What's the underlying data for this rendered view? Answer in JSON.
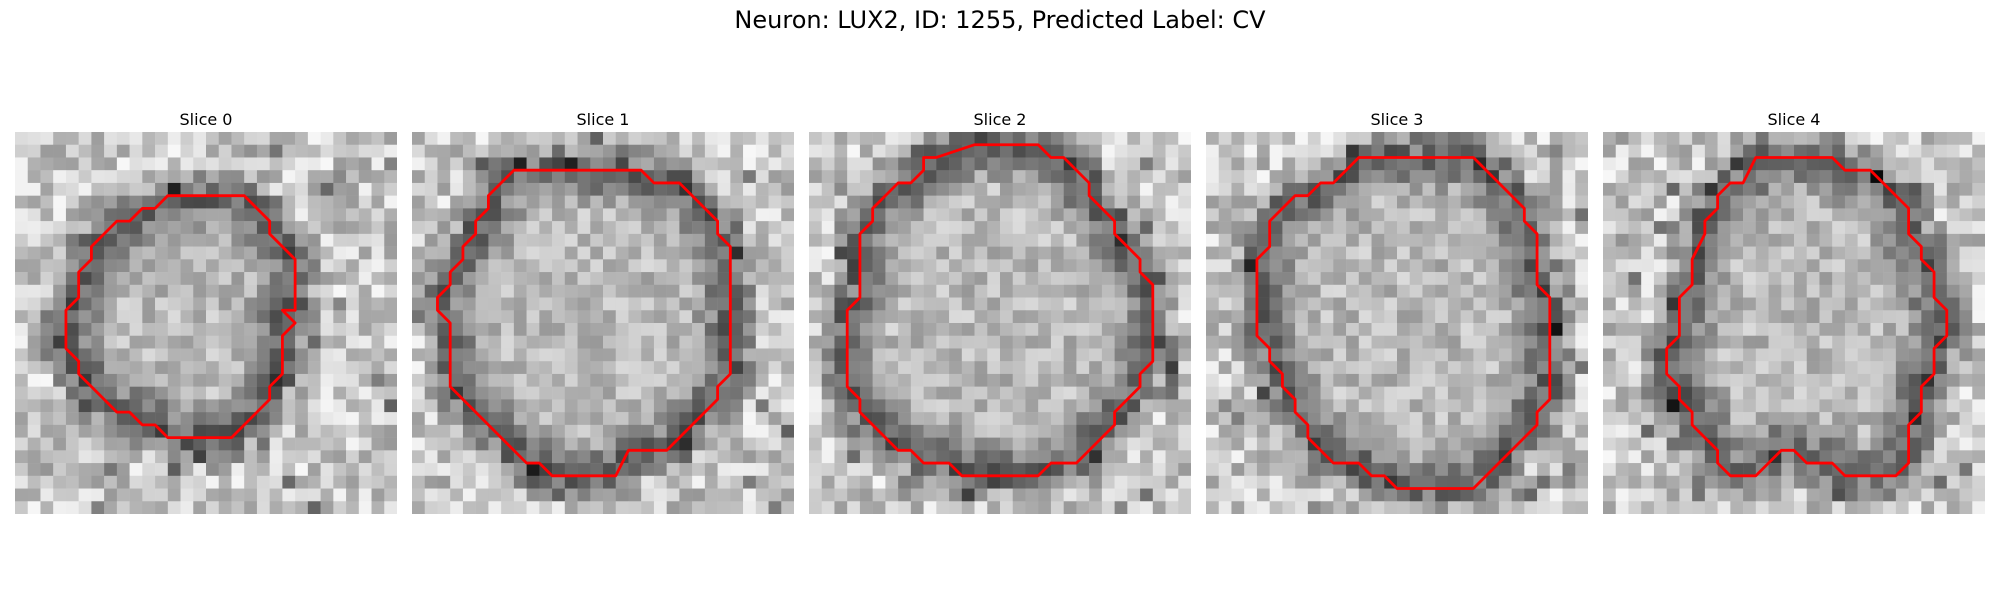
{
  "figure": {
    "title": "Neuron: LUX2, ID: 1255, Predicted Label: CV"
  },
  "colors": {
    "contour": "#ff0000",
    "background": "#ffffff"
  },
  "panels": [
    {
      "title": "Slice 0",
      "contour_grid": [
        [
          13,
          5
        ],
        [
          18,
          5
        ],
        [
          20,
          7
        ],
        [
          20,
          8
        ],
        [
          22,
          10
        ],
        [
          22,
          14
        ],
        [
          21,
          14
        ],
        [
          22,
          15
        ],
        [
          21,
          16
        ],
        [
          21,
          19
        ],
        [
          20,
          20
        ],
        [
          20,
          21
        ],
        [
          17,
          24
        ],
        [
          12,
          24
        ],
        [
          11,
          23
        ],
        [
          10,
          23
        ],
        [
          9,
          22
        ],
        [
          8,
          22
        ],
        [
          7,
          21
        ],
        [
          6,
          20
        ],
        [
          5,
          19
        ],
        [
          5,
          18
        ],
        [
          4,
          17
        ],
        [
          4,
          14
        ],
        [
          5,
          13
        ],
        [
          5,
          11
        ],
        [
          6,
          10
        ],
        [
          6,
          9
        ],
        [
          8,
          7
        ],
        [
          9,
          7
        ],
        [
          10,
          6
        ],
        [
          11,
          6
        ],
        [
          12,
          5
        ]
      ]
    },
    {
      "title": "Slice 1",
      "contour_grid": [
        [
          10,
          3
        ],
        [
          18,
          3
        ],
        [
          19,
          4
        ],
        [
          21,
          4
        ],
        [
          24,
          7
        ],
        [
          24,
          8
        ],
        [
          25,
          9
        ],
        [
          25,
          19
        ],
        [
          24,
          20
        ],
        [
          24,
          21
        ],
        [
          20,
          25
        ],
        [
          17,
          25
        ],
        [
          16,
          27
        ],
        [
          11,
          27
        ],
        [
          10,
          26
        ],
        [
          9,
          26
        ],
        [
          3,
          20
        ],
        [
          3,
          15
        ],
        [
          2,
          14
        ],
        [
          2,
          13
        ],
        [
          3,
          12
        ],
        [
          3,
          11
        ],
        [
          4,
          10
        ],
        [
          4,
          9
        ],
        [
          5,
          8
        ],
        [
          5,
          7
        ],
        [
          6,
          6
        ],
        [
          6,
          5
        ],
        [
          8,
          3
        ]
      ]
    },
    {
      "title": "Slice 2",
      "contour_grid": [
        [
          10,
          2
        ],
        [
          13,
          1
        ],
        [
          18,
          1
        ],
        [
          19,
          2
        ],
        [
          20,
          2
        ],
        [
          22,
          4
        ],
        [
          22,
          5
        ],
        [
          24,
          7
        ],
        [
          24,
          8
        ],
        [
          26,
          10
        ],
        [
          26,
          11
        ],
        [
          27,
          12
        ],
        [
          27,
          18
        ],
        [
          26,
          19
        ],
        [
          26,
          20
        ],
        [
          24,
          22
        ],
        [
          24,
          23
        ],
        [
          21,
          26
        ],
        [
          19,
          26
        ],
        [
          18,
          27
        ],
        [
          12,
          27
        ],
        [
          11,
          26
        ],
        [
          9,
          26
        ],
        [
          8,
          25
        ],
        [
          7,
          25
        ],
        [
          4,
          22
        ],
        [
          4,
          21
        ],
        [
          3,
          20
        ],
        [
          3,
          14
        ],
        [
          4,
          13
        ],
        [
          4,
          8
        ],
        [
          5,
          7
        ],
        [
          5,
          6
        ],
        [
          7,
          4
        ],
        [
          8,
          4
        ],
        [
          9,
          3
        ],
        [
          9,
          2
        ]
      ]
    },
    {
      "title": "Slice 3",
      "contour_grid": [
        [
          12,
          2
        ],
        [
          21,
          2
        ],
        [
          25,
          6
        ],
        [
          25,
          7
        ],
        [
          26,
          8
        ],
        [
          26,
          12
        ],
        [
          27,
          13
        ],
        [
          27,
          21
        ],
        [
          26,
          22
        ],
        [
          26,
          23
        ],
        [
          21,
          28
        ],
        [
          15,
          28
        ],
        [
          14,
          27
        ],
        [
          13,
          27
        ],
        [
          12,
          26
        ],
        [
          10,
          26
        ],
        [
          8,
          24
        ],
        [
          8,
          23
        ],
        [
          7,
          22
        ],
        [
          7,
          21
        ],
        [
          6,
          20
        ],
        [
          6,
          19
        ],
        [
          5,
          18
        ],
        [
          5,
          17
        ],
        [
          4,
          16
        ],
        [
          4,
          10
        ],
        [
          5,
          9
        ],
        [
          5,
          7
        ],
        [
          7,
          5
        ],
        [
          8,
          5
        ],
        [
          9,
          4
        ],
        [
          10,
          4
        ],
        [
          11,
          3
        ]
      ]
    },
    {
      "title": "Slice 4",
      "contour_grid": [
        [
          12,
          2
        ],
        [
          18,
          2
        ],
        [
          19,
          3
        ],
        [
          21,
          3
        ],
        [
          24,
          6
        ],
        [
          24,
          8
        ],
        [
          25,
          9
        ],
        [
          25,
          10
        ],
        [
          26,
          11
        ],
        [
          26,
          13
        ],
        [
          27,
          14
        ],
        [
          27,
          16
        ],
        [
          26,
          17
        ],
        [
          26,
          19
        ],
        [
          25,
          20
        ],
        [
          25,
          22
        ],
        [
          24,
          23
        ],
        [
          24,
          26
        ],
        [
          23,
          27
        ],
        [
          19,
          27
        ],
        [
          18,
          26
        ],
        [
          16,
          26
        ],
        [
          15,
          25
        ],
        [
          14,
          25
        ],
        [
          13,
          26
        ],
        [
          12,
          27
        ],
        [
          10,
          27
        ],
        [
          9,
          26
        ],
        [
          9,
          25
        ],
        [
          7,
          23
        ],
        [
          7,
          22
        ],
        [
          6,
          21
        ],
        [
          6,
          20
        ],
        [
          5,
          19
        ],
        [
          5,
          17
        ],
        [
          6,
          16
        ],
        [
          6,
          13
        ],
        [
          7,
          12
        ],
        [
          7,
          10
        ],
        [
          8,
          8
        ],
        [
          8,
          7
        ],
        [
          9,
          6
        ],
        [
          9,
          5
        ],
        [
          10,
          4
        ],
        [
          11,
          4
        ]
      ]
    }
  ]
}
